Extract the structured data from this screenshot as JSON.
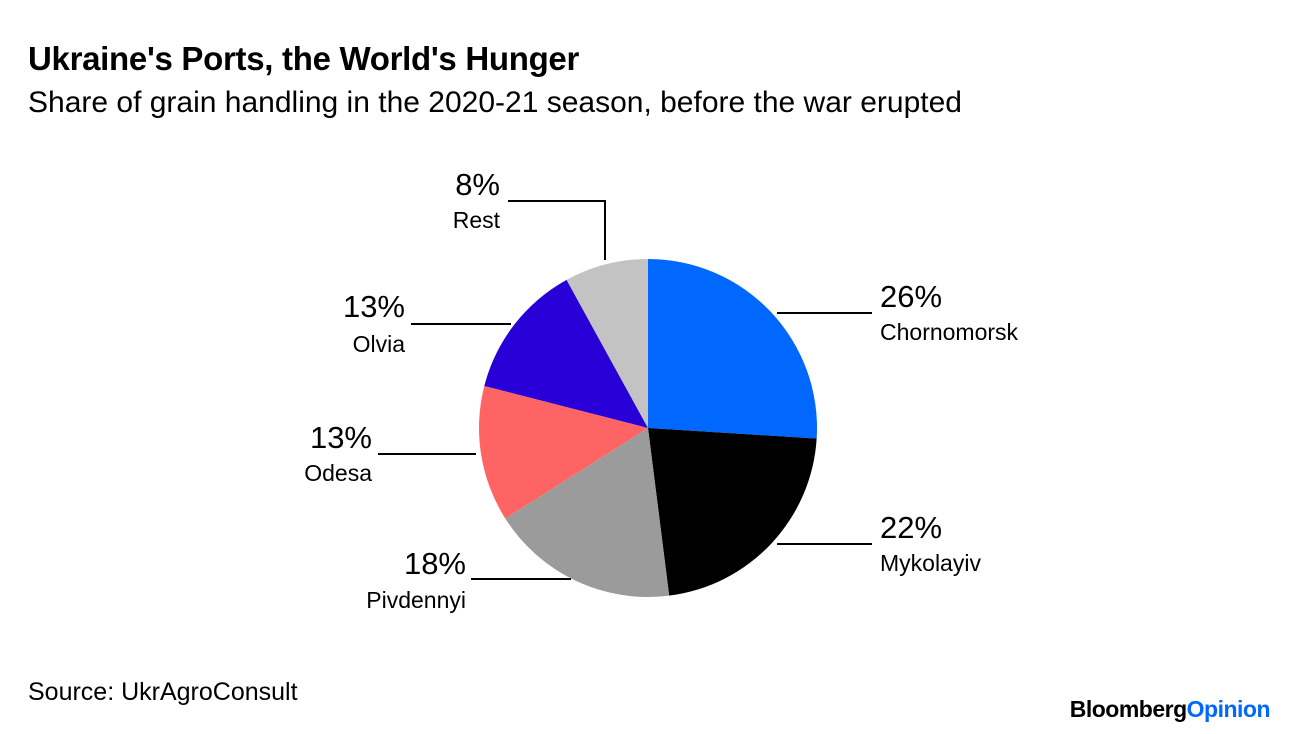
{
  "header": {
    "title": "Ukraine's Ports, the World's Hunger",
    "subtitle": "Share of grain handling in the 2020-21 season, before the war erupted"
  },
  "footer": {
    "source": "Source: UkrAgroConsult",
    "brand_primary": "Bloomberg",
    "brand_secondary": "Opinion"
  },
  "chart_data": {
    "type": "pie",
    "title": "Ukraine's Ports, the World's Hunger",
    "subtitle": "Share of grain handling in the 2020-21 season, before the war erupted",
    "slices": [
      {
        "label": "Chornomorsk",
        "value": 26,
        "display": "26%",
        "color": "#0068ff"
      },
      {
        "label": "Mykolayiv",
        "value": 22,
        "display": "22%",
        "color": "#000000"
      },
      {
        "label": "Pivdennyi",
        "value": 18,
        "display": "18%",
        "color": "#9b9b9b"
      },
      {
        "label": "Odesa",
        "value": 13,
        "display": "13%",
        "color": "#ff6464"
      },
      {
        "label": "Olvia",
        "value": 13,
        "display": "13%",
        "color": "#2800d7"
      },
      {
        "label": "Rest",
        "value": 8,
        "display": "8%",
        "color": "#c3c3c3"
      }
    ],
    "start_direction": "12 o'clock, clockwise"
  }
}
